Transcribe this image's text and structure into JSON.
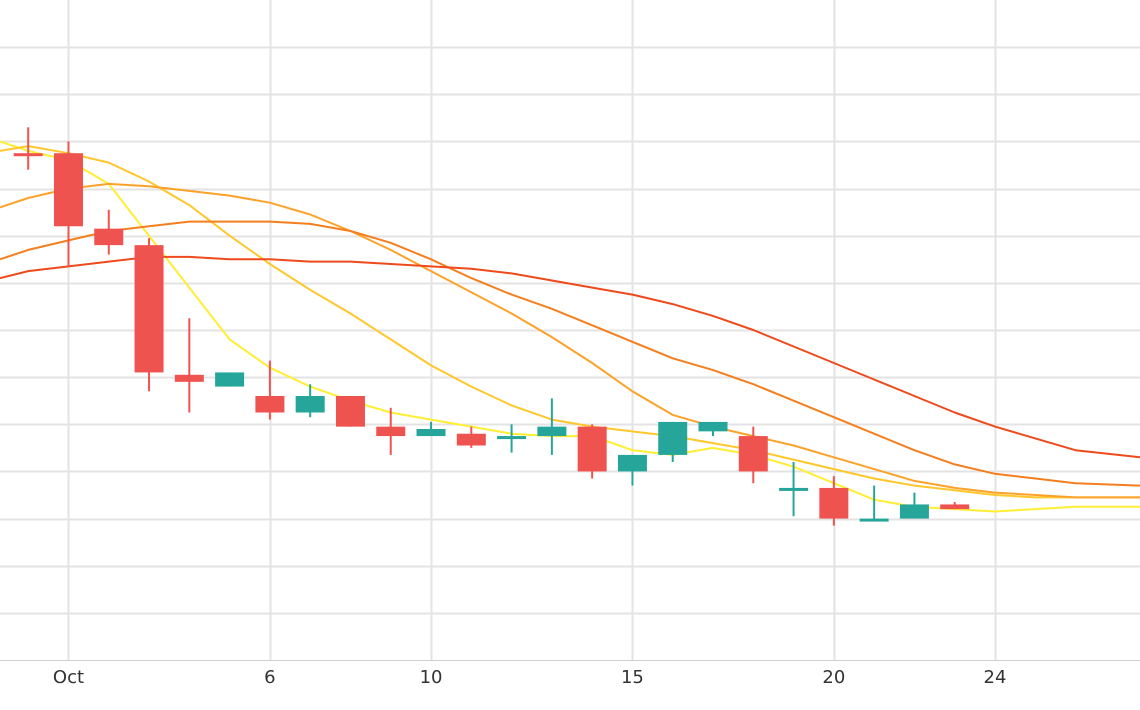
{
  "chart_data": {
    "type": "candlestick",
    "x_tick_labels": [
      {
        "day": 1,
        "label": "Oct"
      },
      {
        "day": 6,
        "label": "6"
      },
      {
        "day": 10,
        "label": "10"
      },
      {
        "day": 15,
        "label": "15"
      },
      {
        "day": 20,
        "label": "20"
      },
      {
        "day": 24,
        "label": "24"
      }
    ],
    "xlim": [
      -0.7,
      27.6
    ],
    "ylim": [
      0.0,
      14.0
    ],
    "grid": true,
    "colors": {
      "up": "#26a69a",
      "down": "#ef5350",
      "grid": "#e3e3e3",
      "axis": "#d0d0d0"
    },
    "candles": [
      {
        "day": 0,
        "open": 10.75,
        "high": 11.3,
        "low": 10.4,
        "close": 10.7
      },
      {
        "day": 1,
        "open": 10.75,
        "high": 11.0,
        "low": 8.35,
        "close": 9.2
      },
      {
        "day": 2,
        "open": 9.15,
        "high": 9.55,
        "low": 8.6,
        "close": 8.8
      },
      {
        "day": 3,
        "open": 8.8,
        "high": 8.95,
        "low": 5.7,
        "close": 6.1
      },
      {
        "day": 4,
        "open": 6.05,
        "high": 7.25,
        "low": 5.25,
        "close": 5.9
      },
      {
        "day": 5,
        "open": 5.8,
        "high": 6.1,
        "low": 5.8,
        "close": 6.1
      },
      {
        "day": 6,
        "open": 5.6,
        "high": 6.35,
        "low": 5.1,
        "close": 5.25
      },
      {
        "day": 7,
        "open": 5.25,
        "high": 5.85,
        "low": 5.15,
        "close": 5.6
      },
      {
        "day": 8,
        "open": 5.6,
        "high": 5.6,
        "low": 4.95,
        "close": 4.95
      },
      {
        "day": 9,
        "open": 4.95,
        "high": 5.35,
        "low": 4.35,
        "close": 4.75
      },
      {
        "day": 10,
        "open": 4.75,
        "high": 5.05,
        "low": 4.8,
        "close": 4.9
      },
      {
        "day": 11,
        "open": 4.8,
        "high": 4.95,
        "low": 4.5,
        "close": 4.55
      },
      {
        "day": 12,
        "open": 4.75,
        "high": 5.0,
        "low": 4.4,
        "close": 4.75
      },
      {
        "day": 13,
        "open": 4.75,
        "high": 5.55,
        "low": 4.35,
        "close": 4.95
      },
      {
        "day": 14,
        "open": 4.95,
        "high": 5.0,
        "low": 3.85,
        "close": 4.0
      },
      {
        "day": 15,
        "open": 4.0,
        "high": 4.35,
        "low": 3.7,
        "close": 4.35
      },
      {
        "day": 16,
        "open": 4.35,
        "high": 5.05,
        "low": 4.2,
        "close": 5.05
      },
      {
        "day": 17,
        "open": 4.85,
        "high": 5.0,
        "low": 4.75,
        "close": 5.05
      },
      {
        "day": 18,
        "open": 4.75,
        "high": 4.95,
        "low": 3.75,
        "close": 4.0
      },
      {
        "day": 19,
        "open": 3.65,
        "high": 4.2,
        "low": 3.05,
        "close": 3.65
      },
      {
        "day": 20,
        "open": 3.65,
        "high": 3.9,
        "low": 2.85,
        "close": 3.0
      },
      {
        "day": 21,
        "open": 3.0,
        "high": 3.7,
        "low": 2.95,
        "close": 3.0
      },
      {
        "day": 22,
        "open": 3.0,
        "high": 3.55,
        "low": 3.05,
        "close": 3.3
      },
      {
        "day": 23,
        "open": 3.3,
        "high": 3.35,
        "low": 3.2,
        "close": 3.2
      }
    ],
    "moving_averages": [
      {
        "color": "#ffee33",
        "values": [
          {
            "day": -0.7,
            "value": 11.0
          },
          {
            "day": 0,
            "value": 10.8
          },
          {
            "day": 1,
            "value": 10.6
          },
          {
            "day": 2,
            "value": 10.1
          },
          {
            "day": 3,
            "value": 9.0
          },
          {
            "day": 4,
            "value": 7.9
          },
          {
            "day": 5,
            "value": 6.8
          },
          {
            "day": 6,
            "value": 6.2
          },
          {
            "day": 7,
            "value": 5.8
          },
          {
            "day": 8,
            "value": 5.5
          },
          {
            "day": 9,
            "value": 5.25
          },
          {
            "day": 10,
            "value": 5.1
          },
          {
            "day": 11,
            "value": 4.95
          },
          {
            "day": 12,
            "value": 4.8
          },
          {
            "day": 13,
            "value": 4.75
          },
          {
            "day": 14,
            "value": 4.75
          },
          {
            "day": 15,
            "value": 4.45
          },
          {
            "day": 16,
            "value": 4.35
          },
          {
            "day": 17,
            "value": 4.5
          },
          {
            "day": 18,
            "value": 4.35
          },
          {
            "day": 19,
            "value": 4.1
          },
          {
            "day": 20,
            "value": 3.75
          },
          {
            "day": 21,
            "value": 3.4
          },
          {
            "day": 22,
            "value": 3.25
          },
          {
            "day": 23,
            "value": 3.2
          },
          {
            "day": 24,
            "value": 3.15
          },
          {
            "day": 25,
            "value": 3.2
          },
          {
            "day": 26,
            "value": 3.25
          },
          {
            "day": 27.6,
            "value": 3.25
          }
        ]
      },
      {
        "color": "#ffc72c",
        "values": [
          {
            "day": -0.7,
            "value": 10.8
          },
          {
            "day": 0,
            "value": 10.9
          },
          {
            "day": 1,
            "value": 10.75
          },
          {
            "day": 2,
            "value": 10.55
          },
          {
            "day": 3,
            "value": 10.15
          },
          {
            "day": 4,
            "value": 9.65
          },
          {
            "day": 5,
            "value": 9.0
          },
          {
            "day": 6,
            "value": 8.4
          },
          {
            "day": 7,
            "value": 7.85
          },
          {
            "day": 8,
            "value": 7.35
          },
          {
            "day": 9,
            "value": 6.8
          },
          {
            "day": 10,
            "value": 6.25
          },
          {
            "day": 11,
            "value": 5.8
          },
          {
            "day": 12,
            "value": 5.4
          },
          {
            "day": 13,
            "value": 5.1
          },
          {
            "day": 14,
            "value": 4.95
          },
          {
            "day": 15,
            "value": 4.85
          },
          {
            "day": 16,
            "value": 4.75
          },
          {
            "day": 17,
            "value": 4.6
          },
          {
            "day": 18,
            "value": 4.45
          },
          {
            "day": 19,
            "value": 4.25
          },
          {
            "day": 20,
            "value": 4.05
          },
          {
            "day": 21,
            "value": 3.85
          },
          {
            "day": 22,
            "value": 3.7
          },
          {
            "day": 23,
            "value": 3.6
          },
          {
            "day": 24,
            "value": 3.5
          },
          {
            "day": 25,
            "value": 3.45
          },
          {
            "day": 26,
            "value": 3.45
          },
          {
            "day": 27.6,
            "value": 3.45
          }
        ]
      },
      {
        "color": "#fca22a",
        "values": [
          {
            "day": -0.7,
            "value": 9.6
          },
          {
            "day": 0,
            "value": 9.8
          },
          {
            "day": 1,
            "value": 10.0
          },
          {
            "day": 2,
            "value": 10.1
          },
          {
            "day": 3,
            "value": 10.05
          },
          {
            "day": 4,
            "value": 9.95
          },
          {
            "day": 5,
            "value": 9.85
          },
          {
            "day": 6,
            "value": 9.7
          },
          {
            "day": 7,
            "value": 9.45
          },
          {
            "day": 8,
            "value": 9.1
          },
          {
            "day": 9,
            "value": 8.7
          },
          {
            "day": 10,
            "value": 8.25
          },
          {
            "day": 11,
            "value": 7.8
          },
          {
            "day": 12,
            "value": 7.35
          },
          {
            "day": 13,
            "value": 6.85
          },
          {
            "day": 14,
            "value": 6.3
          },
          {
            "day": 15,
            "value": 5.7
          },
          {
            "day": 16,
            "value": 5.2
          },
          {
            "day": 17,
            "value": 4.95
          },
          {
            "day": 18,
            "value": 4.75
          },
          {
            "day": 19,
            "value": 4.55
          },
          {
            "day": 20,
            "value": 4.3
          },
          {
            "day": 21,
            "value": 4.05
          },
          {
            "day": 22,
            "value": 3.8
          },
          {
            "day": 23,
            "value": 3.65
          },
          {
            "day": 24,
            "value": 3.55
          },
          {
            "day": 25,
            "value": 3.5
          },
          {
            "day": 26,
            "value": 3.45
          },
          {
            "day": 27.6,
            "value": 3.45
          }
        ]
      },
      {
        "color": "#f57f1f",
        "values": [
          {
            "day": -0.7,
            "value": 8.5
          },
          {
            "day": 0,
            "value": 8.7
          },
          {
            "day": 1,
            "value": 8.9
          },
          {
            "day": 2,
            "value": 9.1
          },
          {
            "day": 3,
            "value": 9.2
          },
          {
            "day": 4,
            "value": 9.3
          },
          {
            "day": 5,
            "value": 9.3
          },
          {
            "day": 6,
            "value": 9.3
          },
          {
            "day": 7,
            "value": 9.25
          },
          {
            "day": 8,
            "value": 9.1
          },
          {
            "day": 9,
            "value": 8.85
          },
          {
            "day": 10,
            "value": 8.5
          },
          {
            "day": 11,
            "value": 8.1
          },
          {
            "day": 12,
            "value": 7.75
          },
          {
            "day": 13,
            "value": 7.45
          },
          {
            "day": 14,
            "value": 7.1
          },
          {
            "day": 15,
            "value": 6.75
          },
          {
            "day": 16,
            "value": 6.4
          },
          {
            "day": 17,
            "value": 6.15
          },
          {
            "day": 18,
            "value": 5.85
          },
          {
            "day": 19,
            "value": 5.5
          },
          {
            "day": 20,
            "value": 5.15
          },
          {
            "day": 21,
            "value": 4.8
          },
          {
            "day": 22,
            "value": 4.45
          },
          {
            "day": 23,
            "value": 4.15
          },
          {
            "day": 24,
            "value": 3.95
          },
          {
            "day": 25,
            "value": 3.85
          },
          {
            "day": 26,
            "value": 3.75
          },
          {
            "day": 27.6,
            "value": 3.7
          }
        ]
      },
      {
        "color": "#ee4a1c",
        "values": [
          {
            "day": -0.7,
            "value": 8.1
          },
          {
            "day": 0,
            "value": 8.25
          },
          {
            "day": 1,
            "value": 8.35
          },
          {
            "day": 2,
            "value": 8.45
          },
          {
            "day": 3,
            "value": 8.55
          },
          {
            "day": 4,
            "value": 8.55
          },
          {
            "day": 5,
            "value": 8.5
          },
          {
            "day": 6,
            "value": 8.5
          },
          {
            "day": 7,
            "value": 8.45
          },
          {
            "day": 8,
            "value": 8.45
          },
          {
            "day": 9,
            "value": 8.4
          },
          {
            "day": 10,
            "value": 8.35
          },
          {
            "day": 11,
            "value": 8.3
          },
          {
            "day": 12,
            "value": 8.2
          },
          {
            "day": 13,
            "value": 8.05
          },
          {
            "day": 14,
            "value": 7.9
          },
          {
            "day": 15,
            "value": 7.75
          },
          {
            "day": 16,
            "value": 7.55
          },
          {
            "day": 17,
            "value": 7.3
          },
          {
            "day": 18,
            "value": 7.0
          },
          {
            "day": 19,
            "value": 6.65
          },
          {
            "day": 20,
            "value": 6.3
          },
          {
            "day": 21,
            "value": 5.95
          },
          {
            "day": 22,
            "value": 5.6
          },
          {
            "day": 23,
            "value": 5.25
          },
          {
            "day": 24,
            "value": 4.95
          },
          {
            "day": 25,
            "value": 4.7
          },
          {
            "day": 26,
            "value": 4.45
          },
          {
            "day": 27.6,
            "value": 4.3
          }
        ]
      }
    ]
  }
}
